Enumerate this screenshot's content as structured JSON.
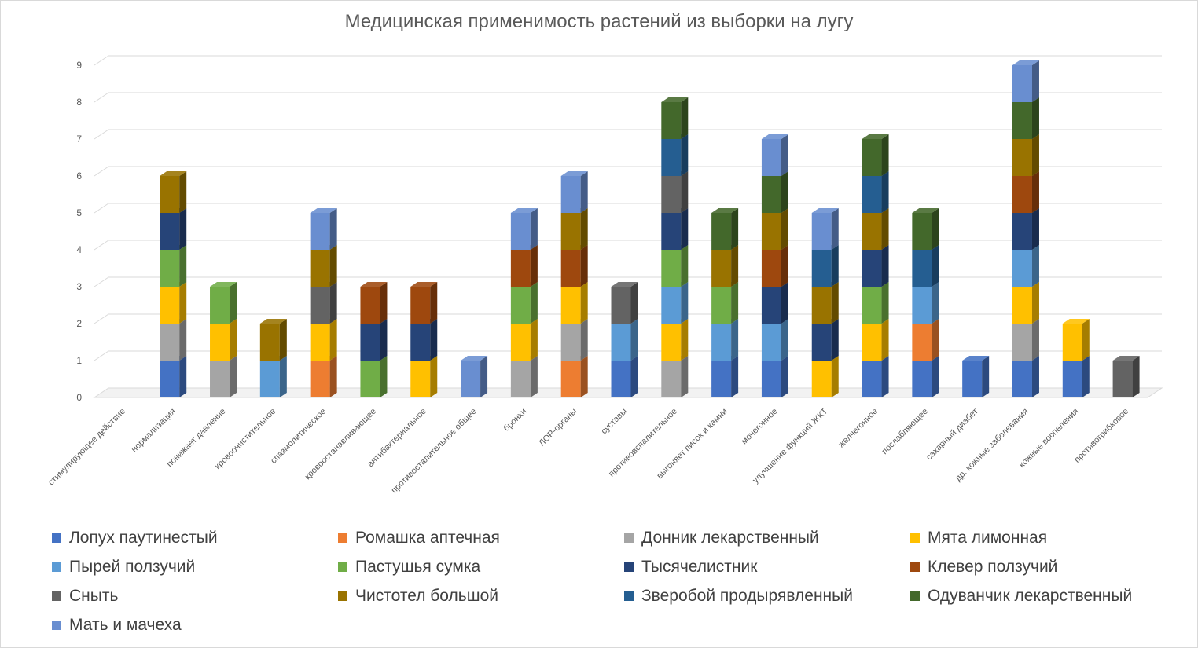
{
  "chart_data": {
    "type": "bar",
    "stacked": true,
    "title": "Медицинская применимость растений из выборки на лугу",
    "xlabel": "",
    "ylabel": "",
    "ylim": [
      0,
      9
    ],
    "yticks": [
      0,
      1,
      2,
      3,
      4,
      5,
      6,
      7,
      8,
      9
    ],
    "grid": true,
    "legend_position": "bottom",
    "categories": [
      "стимулирующее действие",
      "нормализация",
      "понижает давление",
      "кровоочистительное",
      "спазмолитическое",
      "кровоостанавливающее",
      "антибактериальное",
      "противосталительное общее",
      "бронхи",
      "ЛОР-органы",
      "суставы",
      "противовспалительное",
      "выгоняет писок и камни",
      "мочегонное",
      "улучшение функций ЖКТ",
      "желчегонное",
      "послабляющее",
      "сахарный диабет",
      "др. кожные заболевания",
      "кожные воспаления",
      "противогрибковое"
    ],
    "series": [
      {
        "name": "Лопух паутинестый",
        "color": "#4472c4",
        "values": [
          0,
          1,
          0,
          0,
          0,
          0,
          0,
          0,
          0,
          0,
          1,
          0,
          1,
          1,
          0,
          1,
          1,
          1,
          1,
          1,
          0
        ]
      },
      {
        "name": "Ромашка аптечная",
        "color": "#ed7d31",
        "values": [
          0,
          0,
          0,
          0,
          1,
          0,
          0,
          0,
          0,
          1,
          0,
          0,
          0,
          0,
          0,
          0,
          1,
          0,
          0,
          0,
          0
        ]
      },
      {
        "name": "Донник лекарственный",
        "color": "#a5a5a5",
        "values": [
          0,
          1,
          1,
          0,
          0,
          0,
          0,
          0,
          1,
          1,
          0,
          1,
          0,
          0,
          0,
          0,
          0,
          0,
          1,
          0,
          0
        ]
      },
      {
        "name": "Мята лимонная",
        "color": "#ffc000",
        "values": [
          0,
          1,
          1,
          0,
          1,
          0,
          1,
          0,
          1,
          1,
          0,
          1,
          0,
          0,
          1,
          1,
          0,
          0,
          1,
          1,
          0
        ]
      },
      {
        "name": "Пырей ползучий",
        "color": "#5b9bd5",
        "values": [
          0,
          0,
          0,
          1,
          0,
          0,
          0,
          0,
          0,
          0,
          1,
          1,
          1,
          1,
          0,
          0,
          1,
          0,
          1,
          0,
          0
        ]
      },
      {
        "name": "Пастушья сумка",
        "color": "#70ad47",
        "values": [
          0,
          1,
          1,
          0,
          0,
          1,
          0,
          0,
          1,
          0,
          0,
          1,
          1,
          0,
          0,
          1,
          0,
          0,
          0,
          0,
          0
        ]
      },
      {
        "name": "Тысячелистник",
        "color": "#264478",
        "values": [
          0,
          1,
          0,
          0,
          0,
          1,
          1,
          0,
          0,
          0,
          0,
          1,
          0,
          1,
          1,
          1,
          0,
          0,
          1,
          0,
          0
        ]
      },
      {
        "name": "Клевер ползучий",
        "color": "#9e480e",
        "values": [
          0,
          0,
          0,
          0,
          0,
          1,
          1,
          0,
          1,
          1,
          0,
          0,
          0,
          1,
          0,
          0,
          0,
          0,
          1,
          0,
          0
        ]
      },
      {
        "name": "Сныть",
        "color": "#636363",
        "values": [
          0,
          0,
          0,
          0,
          1,
          0,
          0,
          0,
          0,
          0,
          1,
          1,
          0,
          0,
          0,
          0,
          0,
          0,
          0,
          0,
          1
        ]
      },
      {
        "name": "Чистотел большой",
        "color": "#997300",
        "values": [
          0,
          1,
          0,
          1,
          1,
          0,
          0,
          0,
          0,
          1,
          0,
          0,
          1,
          1,
          1,
          1,
          0,
          0,
          1,
          0,
          0
        ]
      },
      {
        "name": "Зверобой продырявленный",
        "color": "#255e91",
        "values": [
          0,
          0,
          0,
          0,
          0,
          0,
          0,
          0,
          0,
          0,
          0,
          1,
          0,
          0,
          1,
          1,
          1,
          0,
          0,
          0,
          0
        ]
      },
      {
        "name": "Одуванчик лекарственный",
        "color": "#43682b",
        "values": [
          0,
          0,
          0,
          0,
          0,
          0,
          0,
          0,
          0,
          0,
          0,
          1,
          1,
          1,
          0,
          1,
          1,
          0,
          1,
          0,
          0
        ]
      },
      {
        "name": "Мать и мачеха",
        "color": "#698ed0",
        "values": [
          0,
          0,
          0,
          0,
          1,
          0,
          0,
          1,
          1,
          1,
          0,
          0,
          0,
          1,
          1,
          0,
          0,
          0,
          1,
          0,
          0
        ]
      }
    ]
  }
}
